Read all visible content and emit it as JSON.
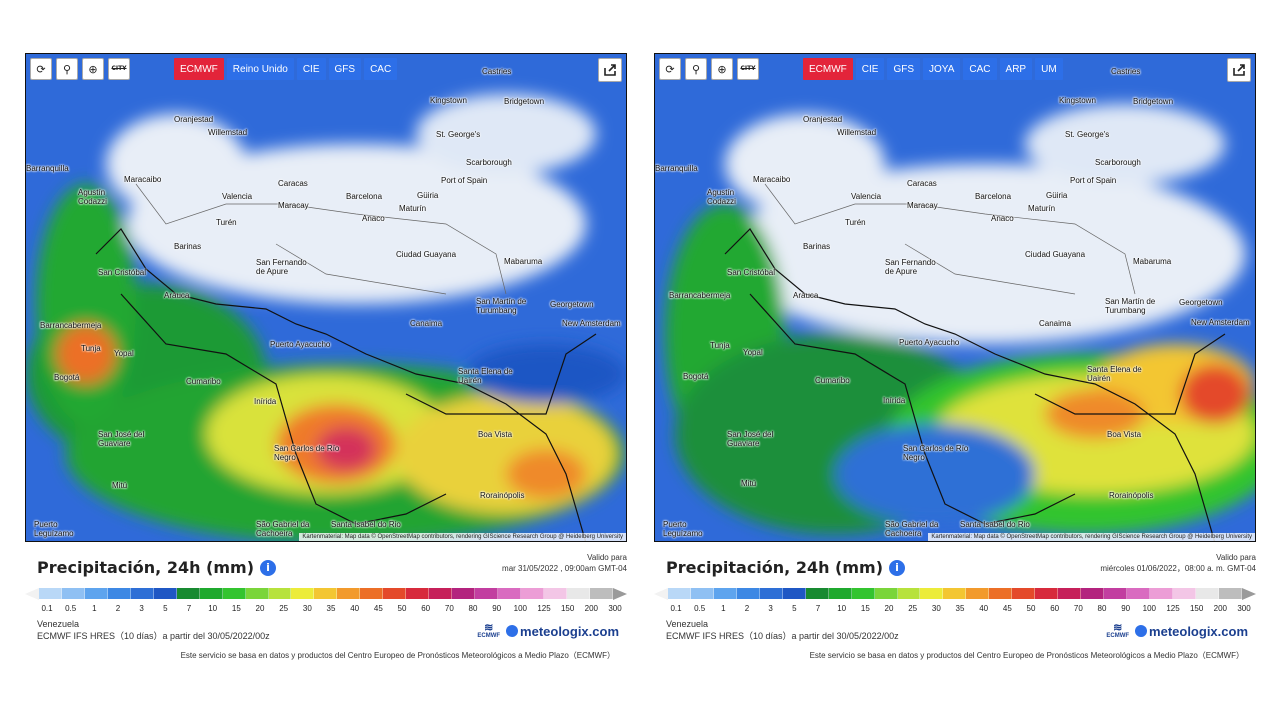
{
  "toolbar": {
    "city_label": "CITY",
    "share_icon": "share-icon"
  },
  "scale": {
    "ticks": [
      "0.1",
      "0.5",
      "1",
      "2",
      "3",
      "5",
      "7",
      "10",
      "15",
      "20",
      "25",
      "30",
      "35",
      "40",
      "45",
      "50",
      "60",
      "70",
      "80",
      "90",
      "100",
      "125",
      "150",
      "200",
      "300"
    ],
    "colors": [
      "#b9d8f7",
      "#8fc0f3",
      "#5ea4ee",
      "#3d88e4",
      "#2e6fd6",
      "#1f57c4",
      "#188a31",
      "#1fa92e",
      "#33c42f",
      "#7ad53a",
      "#b7e23c",
      "#ecec3a",
      "#f3c632",
      "#f29a2c",
      "#ec6f27",
      "#e44a2a",
      "#d72a3c",
      "#c6205a",
      "#b3237e",
      "#c23ea0",
      "#d96bc0",
      "#ec9dd6",
      "#f3c6e6",
      "#e8e8e8",
      "#bdbdbd"
    ]
  },
  "panels": [
    {
      "models": [
        "ECMWF",
        "Reino Unido",
        "CIE",
        "GFS",
        "CAC"
      ],
      "active_model": "ECMWF",
      "title": "Precipitación, 24h (mm)",
      "valid_label": "Valido para",
      "valid_time": "mar 31/05/2022 , 09:00am GMT-04",
      "region": "Venezuela",
      "model_run": "ECMWF IFS HRES（10 días）a partir del 30/05/2022/00z",
      "brand_ecmwf": "ECMWF",
      "brand": "meteologix.com",
      "footer": "Este servicio se basa en datos y productos del Centro Europeo de Pronósticos Meteorológicos a Medio Plazo（ECMWF）",
      "attribution": "Kartenmaterial: Map data © OpenStreetMap contributors, rendering GIScience Research Group @ Heidelberg University",
      "cities": [
        "Castries",
        "Kingstown",
        "Bridgetown",
        "Oranjestad",
        "Willemstad",
        "St. George's",
        "Scarborough",
        "Port of Spain",
        "Maracaibo",
        "Caracas",
        "Valencia",
        "Maracay",
        "Barcelona",
        "Güiria",
        "Maturín",
        "Anaco",
        "Barranquilla",
        "Agustín Codazzi",
        "Turén",
        "Barinas",
        "San Cristóbal",
        "San Fernando de Apure",
        "Ciudad Guayana",
        "Mabaruma",
        "Barrancabermeja",
        "Arauca",
        "San Martín de Turumbang",
        "Georgetown",
        "New Amsterdam",
        "Canaima",
        "Puerto Ayacucho",
        "Tunja",
        "Yopal",
        "Bogotá",
        "Cumaribo",
        "Santa Elena de Uairén",
        "Inírida",
        "Boa Vista",
        "San José del Guaviare",
        "San Carlos de Río Negro",
        "Mitú",
        "Rorainópolis",
        "Puerto Leguízamo",
        "São Gabriel da Cachoeira",
        "Santa Isabel do Rio"
      ]
    },
    {
      "models": [
        "ECMWF",
        "CIE",
        "GFS",
        "JOYA",
        "CAC",
        "ARP",
        "UM"
      ],
      "active_model": "ECMWF",
      "title": "Precipitación, 24h (mm)",
      "valid_label": "Valido para",
      "valid_time": "miércoles 01/06/2022，08:00 a. m. GMT-04",
      "region": "Venezuela",
      "model_run": "ECMWF IFS HRES（10 días）a partir del 30/05/2022/00z",
      "brand_ecmwf": "ECMWF",
      "brand": "meteologix.com",
      "footer": "Este servicio se basa en datos y productos del Centro Europeo de Pronósticos Meteorológicos a Medio Plazo（ECMWF）",
      "attribution": "Kartenmaterial: Map data © OpenStreetMap contributors, rendering GIScience Research Group @ Heidelberg University",
      "cities": [
        "Castries",
        "Kingstown",
        "Bridgetown",
        "Oranjestad",
        "Willemstad",
        "St. George's",
        "Scarborough",
        "Port of Spain",
        "Maracaibo",
        "Caracas",
        "Valencia",
        "Maracay",
        "Barcelona",
        "Güiria",
        "Maturín",
        "Anaco",
        "Barranquilla",
        "Agustín Codazzi",
        "Turén",
        "Barinas",
        "San Cristóbal",
        "San Fernando de Apure",
        "Ciudad Guayana",
        "Mabaruma",
        "Barrancabermeja",
        "Arauca",
        "San Martín de Turumbang",
        "Georgetown",
        "New Amsterdam",
        "Canaima",
        "Puerto Ayacucho",
        "Tunja",
        "Yopal",
        "Bogotá",
        "Cumaribo",
        "Santa Elena de Uairén",
        "Inírida",
        "Boa Vista",
        "San José del Guaviare",
        "San Carlos de Río Negro",
        "Mitú",
        "Rorainópolis",
        "Puerto Leguízamo",
        "São Gabriel da Cachoeira",
        "Santa Isabel do Rio"
      ]
    }
  ]
}
